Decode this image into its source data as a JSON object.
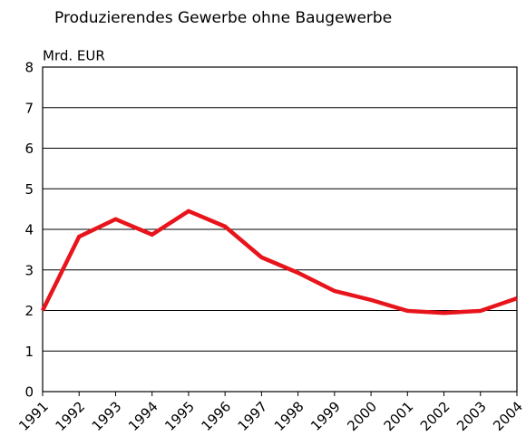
{
  "chart_data": {
    "type": "line",
    "title": "Produzierendes Gewerbe ohne Baugewerbe",
    "y_label": "Mrd. EUR",
    "categories": [
      "1991",
      "1992",
      "1993",
      "1994",
      "1995",
      "1996",
      "1997",
      "1998",
      "1999",
      "2000",
      "2001",
      "2002",
      "2003",
      "2004"
    ],
    "series": [
      {
        "name": "Produzierendes Gewerbe ohne Baugewerbe",
        "color": "#e8141b",
        "values": [
          2.0,
          3.82,
          4.25,
          3.87,
          4.45,
          4.07,
          3.31,
          2.93,
          2.48,
          2.26,
          1.99,
          1.94,
          1.99,
          2.3
        ]
      }
    ],
    "ylim": [
      0,
      8
    ],
    "yticks": [
      0,
      1,
      2,
      3,
      4,
      5,
      6,
      7,
      8
    ],
    "grid": true
  }
}
